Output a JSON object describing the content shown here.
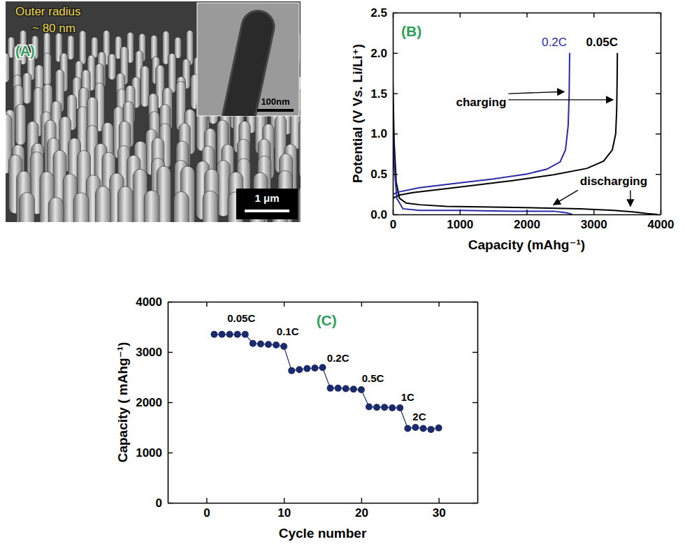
{
  "chart_data": [
    {
      "type": "image",
      "title": "(A)",
      "annotations": [
        {
          "text": "Outer radius"
        },
        {
          "text": "~ 80 nm"
        }
      ],
      "scale_bar": "1 μm",
      "inset": {
        "scale_bar": "100nm"
      }
    },
    {
      "type": "line",
      "title": "(B)",
      "x_label": "Capacity (mAhg⁻¹)",
      "y_label": "Potential (V Vs. Li/Li⁺)",
      "xlim": [
        0,
        4000
      ],
      "xticks": [
        0,
        1000,
        2000,
        3000,
        4000
      ],
      "ylim": [
        0,
        2.5
      ],
      "yticks": [
        {
          "value": 0,
          "label": "0.0"
        },
        0.5,
        {
          "value": 1,
          "label": "1.0"
        },
        1.5,
        {
          "value": 2,
          "label": "2.0"
        },
        2.5
      ],
      "series": [
        {
          "name": "0.05C",
          "color": "#000000",
          "line_style": "solid",
          "x": [
            0,
            20,
            50,
            100,
            200,
            400,
            800,
            1500,
            2200,
            2800,
            3300,
            3600,
            3800,
            3950,
            null,
            0,
            100,
            300,
            700,
            1200,
            1800,
            2400,
            2900,
            3150,
            3280,
            3330,
            3345,
            3352,
            3355
          ],
          "values": [
            1.65,
            0.9,
            0.4,
            0.2,
            0.14,
            0.12,
            0.1,
            0.09,
            0.08,
            0.07,
            0.05,
            0.03,
            0.01,
            0,
            null,
            0.2,
            0.24,
            0.27,
            0.31,
            0.36,
            0.42,
            0.49,
            0.57,
            0.66,
            0.8,
            1.0,
            1.3,
            1.7,
            2.0
          ]
        },
        {
          "name": "0.2C",
          "color": "#2a2aa8",
          "line_style": "solid",
          "x": [
            0,
            20,
            60,
            150,
            400,
            1000,
            1800,
            2400,
            2600,
            2680,
            null,
            0,
            100,
            400,
            900,
            1500,
            2000,
            2300,
            2500,
            2580,
            2620,
            2635,
            2642
          ],
          "values": [
            1.2,
            0.6,
            0.2,
            0.07,
            0.05,
            0.05,
            0.04,
            0.04,
            0.02,
            0,
            null,
            0.25,
            0.28,
            0.33,
            0.38,
            0.44,
            0.5,
            0.56,
            0.65,
            0.8,
            1.1,
            1.5,
            2.0
          ]
        }
      ],
      "annotations": [
        {
          "text": "charging",
          "x": 1320,
          "y": 1.34,
          "arrows": [
            [
              2560,
              1.52
            ],
            [
              3290,
              1.42
            ]
          ]
        },
        {
          "text": "discharging",
          "x": 3300,
          "y": 0.36,
          "arrows": [
            [
              2400,
              0.12
            ],
            [
              3550,
              0.1
            ]
          ]
        }
      ]
    },
    {
      "type": "line",
      "title": "(C)",
      "x_label": "Cycle number",
      "y_label": "Capacity ( mAhg⁻¹)",
      "xlim": [
        -5,
        35
      ],
      "xticks": [
        0,
        10,
        20,
        30
      ],
      "ylim": [
        0,
        4000
      ],
      "yticks": [
        0,
        1000,
        2000,
        3000,
        4000
      ],
      "series": [
        {
          "color": "#1b2a6b",
          "marker": "circle",
          "line_style": "solid",
          "x": [
            1,
            2,
            3,
            4,
            5,
            6,
            7,
            8,
            9,
            10,
            11,
            12,
            13,
            14,
            15,
            16,
            17,
            18,
            19,
            20,
            21,
            22,
            23,
            24,
            25,
            26,
            27,
            28,
            29,
            30
          ],
          "values": [
            3350,
            3350,
            3350,
            3350,
            3350,
            3170,
            3160,
            3150,
            3140,
            3110,
            2630,
            2650,
            2670,
            2680,
            2690,
            2280,
            2280,
            2270,
            2260,
            2250,
            1910,
            1900,
            1900,
            1890,
            1890,
            1480,
            1500,
            1480,
            1460,
            1490
          ]
        }
      ],
      "annotations": [
        {
          "text": "0.05C",
          "x": 4.5,
          "y": 3600
        },
        {
          "text": "0.1C",
          "x": 10.5,
          "y": 3330
        },
        {
          "text": "0.2C",
          "x": 17,
          "y": 2800
        },
        {
          "text": "0.5C",
          "x": 21.5,
          "y": 2400
        },
        {
          "text": "1C",
          "x": 26,
          "y": 2030
        },
        {
          "text": "2C",
          "x": 27.5,
          "y": 1640
        }
      ]
    }
  ]
}
